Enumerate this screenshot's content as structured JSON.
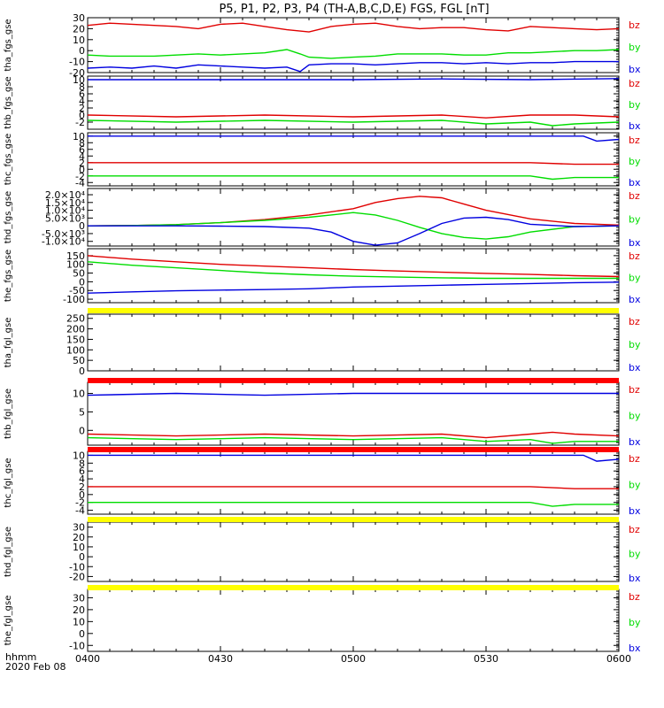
{
  "title": "P5, P1, P2, P3, P4 (TH-A,B,C,D,E) FGS, FGL [nT]",
  "colors": {
    "bz": "#e00000",
    "by": "#00dd00",
    "bx": "#0000e0",
    "bar_yellow": "#ffff00",
    "bar_red": "#ff0000",
    "axis": "#000000"
  },
  "x_axis": {
    "label": "hhmm",
    "date": "2020 Feb 08",
    "ticks": [
      "0400",
      "0430",
      "0500",
      "0530",
      "0600"
    ],
    "range_minutes": [
      0,
      120
    ]
  },
  "chart_data": {
    "type": "line",
    "x_unit": "minutes after 04:00 UT",
    "panels": [
      {
        "ylabel": "tha_fgs_gse",
        "ylim": [
          -20,
          30
        ],
        "yticks": [
          "30",
          "20",
          "10",
          "0",
          "-10",
          "-20"
        ],
        "legend": [
          "bz",
          "by",
          "bx"
        ],
        "series": [
          {
            "name": "bz",
            "x": [
              0,
              5,
              10,
              15,
              20,
              25,
              30,
              35,
              40,
              45,
              50,
              55,
              60,
              65,
              70,
              75,
              80,
              85,
              90,
              95,
              100,
              105,
              110,
              115,
              120
            ],
            "values": [
              23,
              25,
              24,
              23,
              22,
              20,
              24,
              25,
              22,
              19,
              17,
              22,
              24,
              25,
              22,
              20,
              21,
              21,
              19,
              18,
              22,
              21,
              20,
              19,
              20
            ]
          },
          {
            "name": "by",
            "x": [
              0,
              5,
              10,
              15,
              20,
              25,
              30,
              35,
              40,
              45,
              48,
              50,
              55,
              60,
              65,
              70,
              75,
              80,
              85,
              90,
              95,
              100,
              105,
              110,
              115,
              120
            ],
            "values": [
              -4,
              -5,
              -5,
              -5,
              -4,
              -3,
              -4,
              -3,
              -2,
              1,
              -3,
              -6,
              -7,
              -6,
              -5,
              -3,
              -3,
              -3,
              -4,
              -4,
              -2,
              -2,
              -1,
              0,
              0,
              1
            ]
          },
          {
            "name": "bx",
            "x": [
              0,
              5,
              10,
              15,
              20,
              25,
              30,
              35,
              40,
              45,
              48,
              50,
              55,
              60,
              65,
              70,
              75,
              80,
              85,
              90,
              95,
              100,
              105,
              110,
              115,
              120
            ],
            "values": [
              -16,
              -15,
              -16,
              -14,
              -16,
              -13,
              -14,
              -15,
              -16,
              -15,
              -19,
              -13,
              -12,
              -12,
              -13,
              -12,
              -11,
              -11,
              -12,
              -11,
              -12,
              -11,
              -11,
              -10,
              -10,
              -10
            ]
          }
        ]
      },
      {
        "ylabel": "thb_fgs_gse",
        "ylim": [
          -4,
          11
        ],
        "yticks": [
          "10",
          "8",
          "6",
          "4",
          "2",
          "0",
          "-2"
        ],
        "legend": [
          "bz",
          "by",
          "bx"
        ],
        "series": [
          {
            "name": "bz",
            "x": [
              0,
              20,
              40,
              60,
              80,
              90,
              100,
              105,
              110,
              120
            ],
            "values": [
              0,
              -0.5,
              0,
              -0.5,
              0,
              -0.8,
              0,
              0,
              0,
              -0.5
            ]
          },
          {
            "name": "by",
            "x": [
              0,
              20,
              40,
              60,
              80,
              90,
              100,
              105,
              110,
              120
            ],
            "values": [
              -1.5,
              -2,
              -1.5,
              -2,
              -1.5,
              -2.5,
              -2,
              -3,
              -2.5,
              -2
            ]
          },
          {
            "name": "bx",
            "x": [
              0,
              20,
              40,
              60,
              80,
              100,
              120
            ],
            "values": [
              10,
              10,
              10,
              10,
              10.2,
              10,
              10.3
            ]
          }
        ]
      },
      {
        "ylabel": "thc_fgs_gse",
        "ylim": [
          -5,
          11
        ],
        "yticks": [
          "10",
          "8",
          "6",
          "4",
          "2",
          "0",
          "-2",
          "-4"
        ],
        "legend": [
          "bz",
          "by",
          "bx"
        ],
        "series": [
          {
            "name": "bz",
            "x": [
              0,
              20,
              40,
              60,
              80,
              100,
              110,
              120
            ],
            "values": [
              2,
              2,
              2,
              2,
              2,
              2,
              1.5,
              1.5
            ]
          },
          {
            "name": "by",
            "x": [
              0,
              20,
              40,
              60,
              80,
              100,
              105,
              110,
              120
            ],
            "values": [
              -2,
              -2,
              -2,
              -2,
              -2,
              -2,
              -3,
              -2.5,
              -2.5
            ]
          },
          {
            "name": "bx",
            "x": [
              0,
              20,
              40,
              60,
              80,
              100,
              112,
              115,
              120
            ],
            "values": [
              10,
              10,
              10,
              10,
              10,
              10,
              10,
              8.5,
              9
            ]
          }
        ]
      },
      {
        "ylabel": "thd_fgs_gse",
        "ylim": [
          -13000,
          24000
        ],
        "yticks": [
          "2.0×10⁴",
          "1.5×10⁴",
          "1.0×10⁴",
          "5.0×10³",
          "0",
          "-5.0×10³",
          "-1.0×10⁴"
        ],
        "legend": [
          "bz",
          "by",
          "bx"
        ],
        "series": [
          {
            "name": "bz",
            "x": [
              0,
              10,
              20,
              30,
              40,
              50,
              60,
              65,
              70,
              75,
              80,
              85,
              90,
              100,
              110,
              120
            ],
            "values": [
              0,
              200,
              800,
              2000,
              4000,
              7000,
              11000,
              15000,
              17500,
              19000,
              18000,
              14000,
              10000,
              4500,
              1500,
              500
            ]
          },
          {
            "name": "by",
            "x": [
              0,
              10,
              20,
              30,
              40,
              50,
              55,
              60,
              65,
              70,
              75,
              80,
              85,
              90,
              95,
              100,
              110,
              120
            ],
            "values": [
              0,
              200,
              800,
              2000,
              3500,
              5500,
              7000,
              8500,
              7000,
              3500,
              -1000,
              -5000,
              -7500,
              -8500,
              -7000,
              -4000,
              -500,
              0
            ]
          },
          {
            "name": "bx",
            "x": [
              0,
              10,
              20,
              30,
              40,
              50,
              55,
              60,
              65,
              70,
              75,
              80,
              85,
              90,
              95,
              100,
              110,
              120
            ],
            "values": [
              0,
              0,
              0,
              -200,
              -500,
              -1500,
              -4000,
              -10000,
              -12500,
              -11000,
              -5000,
              1500,
              5000,
              5500,
              4000,
              1000,
              -500,
              0
            ]
          }
        ]
      },
      {
        "ylabel": "the_fgs_gse",
        "ylim": [
          -120,
          190
        ],
        "yticks": [
          "150",
          "100",
          "50",
          "0",
          "-50",
          "-100"
        ],
        "legend": [
          "bz",
          "by",
          "bx"
        ],
        "series": [
          {
            "name": "bz",
            "x": [
              0,
              10,
              20,
              30,
              40,
              50,
              60,
              70,
              80,
              90,
              100,
              110,
              120
            ],
            "values": [
              150,
              130,
              115,
              100,
              90,
              80,
              70,
              62,
              55,
              48,
              42,
              35,
              30
            ]
          },
          {
            "name": "by",
            "x": [
              0,
              10,
              20,
              30,
              40,
              50,
              60,
              70,
              80,
              90,
              100,
              110,
              120
            ],
            "values": [
              115,
              95,
              80,
              65,
              50,
              40,
              32,
              27,
              23,
              20,
              20,
              20,
              20
            ]
          },
          {
            "name": "bx",
            "x": [
              0,
              10,
              20,
              30,
              40,
              50,
              60,
              70,
              80,
              90,
              100,
              110,
              120
            ],
            "values": [
              -65,
              -58,
              -52,
              -48,
              -45,
              -40,
              -30,
              -25,
              -20,
              -15,
              -10,
              -5,
              -2
            ]
          }
        ]
      },
      {
        "ylabel": "tha_fgl_gse",
        "ylim": [
          0,
          270
        ],
        "yticks": [
          "250",
          "200",
          "150",
          "100",
          "50",
          "0"
        ],
        "legend": [
          "bz",
          "by",
          "bx"
        ],
        "series": []
      },
      {
        "ylabel": "thb_fgl_gse",
        "ylim": [
          -4,
          13
        ],
        "yticks": [
          "10",
          "5",
          "0"
        ],
        "legend": [
          "bz",
          "by",
          "bx"
        ],
        "series": [
          {
            "name": "bz",
            "x": [
              0,
              20,
              40,
              60,
              80,
              90,
              100,
              105,
              110,
              120
            ],
            "values": [
              -1,
              -1.5,
              -1,
              -1.5,
              -1,
              -2,
              -1,
              -0.5,
              -1,
              -1.5
            ]
          },
          {
            "name": "by",
            "x": [
              0,
              20,
              40,
              60,
              80,
              90,
              100,
              105,
              110,
              120
            ],
            "values": [
              -2,
              -2.5,
              -2,
              -2.5,
              -2,
              -3,
              -2.5,
              -3.5,
              -3,
              -3
            ]
          },
          {
            "name": "bx",
            "x": [
              0,
              20,
              40,
              60,
              80,
              100,
              120
            ],
            "values": [
              9.5,
              10,
              9.5,
              10,
              10,
              10,
              10
            ]
          }
        ]
      },
      {
        "ylabel": "thc_fgl_gse",
        "ylim": [
          -5,
          11
        ],
        "yticks": [
          "10",
          "8",
          "6",
          "4",
          "2",
          "0",
          "-2",
          "-4"
        ],
        "legend": [
          "bz",
          "by",
          "bx"
        ],
        "series": [
          {
            "name": "bz",
            "x": [
              0,
              20,
              40,
              60,
              80,
              100,
              110,
              120
            ],
            "values": [
              2,
              2,
              2,
              2,
              2,
              2,
              1.5,
              1.5
            ]
          },
          {
            "name": "by",
            "x": [
              0,
              20,
              40,
              60,
              80,
              100,
              105,
              110,
              120
            ],
            "values": [
              -2,
              -2,
              -2,
              -2,
              -2,
              -2,
              -3,
              -2.5,
              -2.5
            ]
          },
          {
            "name": "bx",
            "x": [
              0,
              20,
              40,
              60,
              80,
              100,
              112,
              115,
              120
            ],
            "values": [
              10,
              10,
              10,
              10,
              10,
              10,
              10,
              8.5,
              9
            ]
          }
        ]
      },
      {
        "ylabel": "thd_fgl_gse",
        "ylim": [
          -25,
          35
        ],
        "yticks": [
          "30",
          "20",
          "10",
          "0",
          "-10",
          "-20"
        ],
        "legend": [
          "bz",
          "by",
          "bx"
        ],
        "series": []
      },
      {
        "ylabel": "the_fgl_gse",
        "ylim": [
          -15,
          37
        ],
        "yticks": [
          "30",
          "20",
          "10",
          "0",
          "-10"
        ],
        "legend": [
          "bz",
          "by",
          "bx"
        ],
        "series": []
      }
    ],
    "status_bars": [
      {
        "after_panel": 4,
        "color": "yellow"
      },
      {
        "after_panel": 5,
        "color": "red"
      },
      {
        "after_panel": 6,
        "color": "red"
      },
      {
        "after_panel": 7,
        "color": "yellow"
      },
      {
        "after_panel": 8,
        "color": "yellow"
      }
    ]
  }
}
